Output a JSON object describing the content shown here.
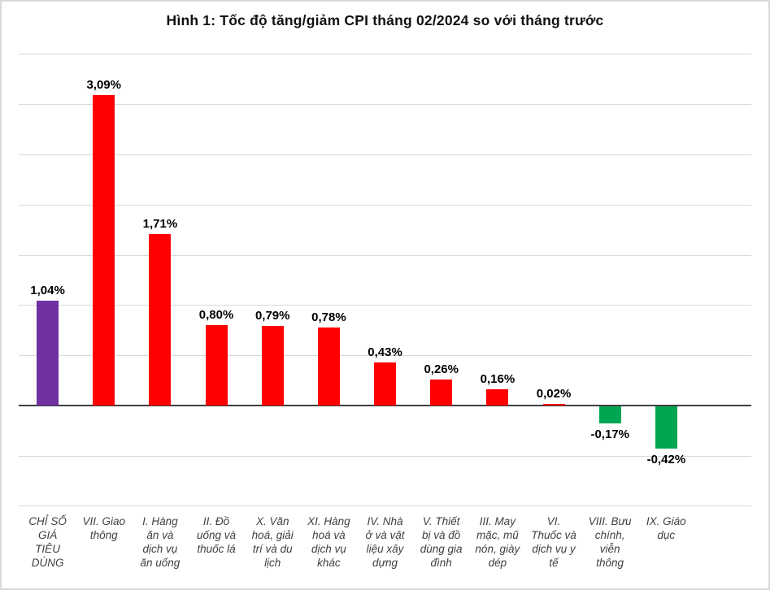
{
  "chart_data": {
    "type": "bar",
    "title": "Hình 1: Tốc độ tăng/giảm CPI tháng 02/2024 so với tháng trước",
    "categories": [
      "CHỈ SỐ\nGIÁ\nTIÊU\nDÙNG",
      "VII. Giao\nthông",
      "I. Hàng\năn và\ndịch vụ\năn uống",
      "II. Đồ\nuống và\nthuốc lá",
      "X. Văn\nhoá, giải\ntrí và du\nlịch",
      "XI. Hàng\nhoá và\ndịch vụ\nkhác",
      "IV. Nhà\nở và vật\nliệu xây\ndựng",
      "V. Thiết\nbị và đồ\ndùng gia\nđình",
      "III. May\nmặc, mũ\nnón, giày\ndép",
      "VI.\nThuốc và\ndịch vụ y\ntế",
      "VIII. Bưu\nchính,\nviễn\nthông",
      "IX. Giáo\ndục"
    ],
    "values": [
      1.04,
      3.09,
      1.71,
      0.8,
      0.79,
      0.78,
      0.43,
      0.26,
      0.16,
      0.02,
      -0.17,
      -0.42
    ],
    "value_labels": [
      "1,04%",
      "3,09%",
      "1,71%",
      "0,80%",
      "0,79%",
      "0,78%",
      "0,43%",
      "0,26%",
      "0,16%",
      "0,02%",
      "-0,17%",
      "-0,42%"
    ],
    "bar_colors": [
      "#7030A0",
      "#FF0000",
      "#FF0000",
      "#FF0000",
      "#FF0000",
      "#FF0000",
      "#FF0000",
      "#FF0000",
      "#FF0000",
      "#FF0000",
      "#00A651",
      "#00A651"
    ],
    "xlabel": "",
    "ylabel": "",
    "ylim": [
      -1.0,
      3.5
    ],
    "grid_step": 0.5,
    "grid": true,
    "legend": false,
    "gridline_color": "#d9d9d9",
    "axis_line_color": "#404040"
  }
}
